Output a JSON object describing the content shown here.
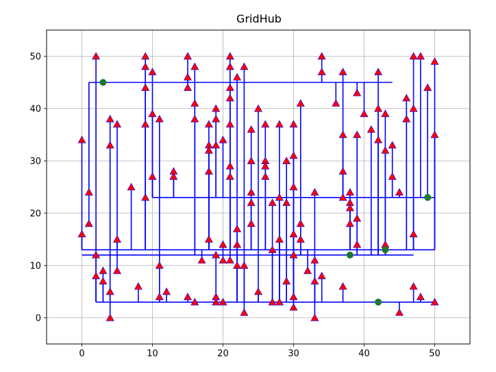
{
  "chart_data": {
    "type": "scatter",
    "title": "GridHub",
    "xlabel": "",
    "ylabel": "",
    "xlim": [
      -5,
      55
    ],
    "ylim": [
      -5,
      55
    ],
    "xticks": [
      0,
      10,
      20,
      30,
      40,
      50
    ],
    "yticks": [
      0,
      10,
      20,
      30,
      40,
      50
    ],
    "grid": true,
    "colors": {
      "wire": "#0000ff",
      "terminal_fill": "#ff0000",
      "terminal_edge": "#0000ff",
      "hub": "#1a7a2e",
      "grid": "#b0b0b0",
      "axes": "#000000"
    },
    "hubs": [
      {
        "x": 3,
        "y": 45
      },
      {
        "x": 38,
        "y": 12
      },
      {
        "x": 43,
        "y": 13
      },
      {
        "x": 49,
        "y": 23
      },
      {
        "x": 42,
        "y": 3
      }
    ],
    "trunks": [
      {
        "x1": 1,
        "x2": 44,
        "y": 45
      },
      {
        "x1": 0,
        "x2": 50,
        "y": 13
      },
      {
        "x1": 0,
        "x2": 47,
        "y": 12
      },
      {
        "x1": 10,
        "x2": 50,
        "y": 23
      },
      {
        "x1": 2,
        "x2": 50,
        "y": 3
      }
    ],
    "terminals": [
      {
        "x": 0,
        "y": 34,
        "hub": 1
      },
      {
        "x": 0,
        "y": 16,
        "hub": 1
      },
      {
        "x": 1,
        "y": 24,
        "hub": 0
      },
      {
        "x": 1,
        "y": 18,
        "hub": 0
      },
      {
        "x": 2,
        "y": 50,
        "hub": 4
      },
      {
        "x": 2,
        "y": 12,
        "hub": 4
      },
      {
        "x": 2,
        "y": 8,
        "hub": 4
      },
      {
        "x": 3,
        "y": 9,
        "hub": 4
      },
      {
        "x": 3,
        "y": 7,
        "hub": 4
      },
      {
        "x": 4,
        "y": 38,
        "hub": 4
      },
      {
        "x": 4,
        "y": 33,
        "hub": 4
      },
      {
        "x": 4,
        "y": 5,
        "hub": 4
      },
      {
        "x": 4,
        "y": 0,
        "hub": 4
      },
      {
        "x": 5,
        "y": 37,
        "hub": 1
      },
      {
        "x": 5,
        "y": 15,
        "hub": 1
      },
      {
        "x": 5,
        "y": 9,
        "hub": 1
      },
      {
        "x": 7,
        "y": 25,
        "hub": 1
      },
      {
        "x": 8,
        "y": 6,
        "hub": 4
      },
      {
        "x": 9,
        "y": 50,
        "hub": 1
      },
      {
        "x": 9,
        "y": 48,
        "hub": 1
      },
      {
        "x": 9,
        "y": 44,
        "hub": 1
      },
      {
        "x": 9,
        "y": 37,
        "hub": 1
      },
      {
        "x": 9,
        "y": 23,
        "hub": 1
      },
      {
        "x": 10,
        "y": 47,
        "hub": 3
      },
      {
        "x": 10,
        "y": 39,
        "hub": 3
      },
      {
        "x": 10,
        "y": 27,
        "hub": 3
      },
      {
        "x": 11,
        "y": 38,
        "hub": 4
      },
      {
        "x": 11,
        "y": 10,
        "hub": 4
      },
      {
        "x": 11,
        "y": 4,
        "hub": 4
      },
      {
        "x": 12,
        "y": 5,
        "hub": 4
      },
      {
        "x": 13,
        "y": 28,
        "hub": 3
      },
      {
        "x": 13,
        "y": 27,
        "hub": 3
      },
      {
        "x": 15,
        "y": 50,
        "hub": 0
      },
      {
        "x": 15,
        "y": 46,
        "hub": 0
      },
      {
        "x": 15,
        "y": 44,
        "hub": 0
      },
      {
        "x": 15,
        "y": 4,
        "hub": 4
      },
      {
        "x": 16,
        "y": 48,
        "hub": 2
      },
      {
        "x": 16,
        "y": 41,
        "hub": 2
      },
      {
        "x": 16,
        "y": 38,
        "hub": 2
      },
      {
        "x": 16,
        "y": 3,
        "hub": 4
      },
      {
        "x": 17,
        "y": 11,
        "hub": 1
      },
      {
        "x": 18,
        "y": 37,
        "hub": 1
      },
      {
        "x": 18,
        "y": 33,
        "hub": 1
      },
      {
        "x": 18,
        "y": 32,
        "hub": 1
      },
      {
        "x": 18,
        "y": 28,
        "hub": 1
      },
      {
        "x": 18,
        "y": 15,
        "hub": 1
      },
      {
        "x": 19,
        "y": 40,
        "hub": 3
      },
      {
        "x": 19,
        "y": 38,
        "hub": 3
      },
      {
        "x": 19,
        "y": 33,
        "hub": 3
      },
      {
        "x": 19,
        "y": 12,
        "hub": 4
      },
      {
        "x": 19,
        "y": 4,
        "hub": 4
      },
      {
        "x": 19,
        "y": 3,
        "hub": 4
      },
      {
        "x": 20,
        "y": 34,
        "hub": 3
      },
      {
        "x": 20,
        "y": 14,
        "hub": 2
      },
      {
        "x": 20,
        "y": 11,
        "hub": 2
      },
      {
        "x": 20,
        "y": 3,
        "hub": 4
      },
      {
        "x": 21,
        "y": 50,
        "hub": 1
      },
      {
        "x": 21,
        "y": 48,
        "hub": 1
      },
      {
        "x": 21,
        "y": 44,
        "hub": 1
      },
      {
        "x": 21,
        "y": 42,
        "hub": 1
      },
      {
        "x": 21,
        "y": 37,
        "hub": 1
      },
      {
        "x": 21,
        "y": 29,
        "hub": 1
      },
      {
        "x": 21,
        "y": 27,
        "hub": 1
      },
      {
        "x": 21,
        "y": 11,
        "hub": 1
      },
      {
        "x": 22,
        "y": 46,
        "hub": 4
      },
      {
        "x": 22,
        "y": 17,
        "hub": 4
      },
      {
        "x": 22,
        "y": 14,
        "hub": 4
      },
      {
        "x": 22,
        "y": 10,
        "hub": 4
      },
      {
        "x": 23,
        "y": 48,
        "hub": 4
      },
      {
        "x": 23,
        "y": 10,
        "hub": 4
      },
      {
        "x": 23,
        "y": 1,
        "hub": 4
      },
      {
        "x": 24,
        "y": 36,
        "hub": 1
      },
      {
        "x": 24,
        "y": 30,
        "hub": 1
      },
      {
        "x": 24,
        "y": 24,
        "hub": 1
      },
      {
        "x": 24,
        "y": 22,
        "hub": 1
      },
      {
        "x": 24,
        "y": 18,
        "hub": 1
      },
      {
        "x": 25,
        "y": 40,
        "hub": 4
      },
      {
        "x": 25,
        "y": 5,
        "hub": 4
      },
      {
        "x": 26,
        "y": 37,
        "hub": 1
      },
      {
        "x": 26,
        "y": 30,
        "hub": 1
      },
      {
        "x": 26,
        "y": 29,
        "hub": 1
      },
      {
        "x": 26,
        "y": 27,
        "hub": 1
      },
      {
        "x": 27,
        "y": 22,
        "hub": 4
      },
      {
        "x": 27,
        "y": 13,
        "hub": 4
      },
      {
        "x": 27,
        "y": 3,
        "hub": 4
      },
      {
        "x": 28,
        "y": 37,
        "hub": 4
      },
      {
        "x": 28,
        "y": 23,
        "hub": 4
      },
      {
        "x": 28,
        "y": 15,
        "hub": 4
      },
      {
        "x": 28,
        "y": 3,
        "hub": 4
      },
      {
        "x": 29,
        "y": 30,
        "hub": 4
      },
      {
        "x": 29,
        "y": 22,
        "hub": 4
      },
      {
        "x": 29,
        "y": 7,
        "hub": 4
      },
      {
        "x": 30,
        "y": 37,
        "hub": 4
      },
      {
        "x": 30,
        "y": 31,
        "hub": 4
      },
      {
        "x": 30,
        "y": 25,
        "hub": 4
      },
      {
        "x": 30,
        "y": 16,
        "hub": 4
      },
      {
        "x": 30,
        "y": 12,
        "hub": 4
      },
      {
        "x": 30,
        "y": 4,
        "hub": 4
      },
      {
        "x": 30,
        "y": 2,
        "hub": 4
      },
      {
        "x": 31,
        "y": 41,
        "hub": 2
      },
      {
        "x": 31,
        "y": 18,
        "hub": 2
      },
      {
        "x": 31,
        "y": 15,
        "hub": 2
      },
      {
        "x": 32,
        "y": 9,
        "hub": 1
      },
      {
        "x": 33,
        "y": 24,
        "hub": 4
      },
      {
        "x": 33,
        "y": 11,
        "hub": 4
      },
      {
        "x": 33,
        "y": 7,
        "hub": 4
      },
      {
        "x": 33,
        "y": 0,
        "hub": 4
      },
      {
        "x": 34,
        "y": 50,
        "hub": 0
      },
      {
        "x": 34,
        "y": 47,
        "hub": 0
      },
      {
        "x": 34,
        "y": 8,
        "hub": 4
      },
      {
        "x": 36,
        "y": 41,
        "hub": 0
      },
      {
        "x": 37,
        "y": 47,
        "hub": 3
      },
      {
        "x": 37,
        "y": 35,
        "hub": 3
      },
      {
        "x": 37,
        "y": 28,
        "hub": 3
      },
      {
        "x": 37,
        "y": 23,
        "hub": 3
      },
      {
        "x": 37,
        "y": 6,
        "hub": 4
      },
      {
        "x": 38,
        "y": 24,
        "hub": 1
      },
      {
        "x": 38,
        "y": 22,
        "hub": 1
      },
      {
        "x": 38,
        "y": 21,
        "hub": 1
      },
      {
        "x": 38,
        "y": 18,
        "hub": 1
      },
      {
        "x": 39,
        "y": 43,
        "hub": 0
      },
      {
        "x": 39,
        "y": 35,
        "hub": 2
      },
      {
        "x": 39,
        "y": 19,
        "hub": 2
      },
      {
        "x": 39,
        "y": 14,
        "hub": 2
      },
      {
        "x": 40,
        "y": 39,
        "hub": 0
      },
      {
        "x": 41,
        "y": 36,
        "hub": 2
      },
      {
        "x": 42,
        "y": 47,
        "hub": 2
      },
      {
        "x": 42,
        "y": 40,
        "hub": 2
      },
      {
        "x": 42,
        "y": 34,
        "hub": 2
      },
      {
        "x": 43,
        "y": 39,
        "hub": 2
      },
      {
        "x": 43,
        "y": 32,
        "hub": 2
      },
      {
        "x": 43,
        "y": 14,
        "hub": 2
      },
      {
        "x": 44,
        "y": 33,
        "hub": 3
      },
      {
        "x": 44,
        "y": 27,
        "hub": 3
      },
      {
        "x": 45,
        "y": 24,
        "hub": 3
      },
      {
        "x": 45,
        "y": 1,
        "hub": 4
      },
      {
        "x": 46,
        "y": 42,
        "hub": 1
      },
      {
        "x": 46,
        "y": 38,
        "hub": 1
      },
      {
        "x": 47,
        "y": 50,
        "hub": 1
      },
      {
        "x": 47,
        "y": 40,
        "hub": 1
      },
      {
        "x": 47,
        "y": 16,
        "hub": 1
      },
      {
        "x": 47,
        "y": 6,
        "hub": 4
      },
      {
        "x": 48,
        "y": 50,
        "hub": 3
      },
      {
        "x": 48,
        "y": 4,
        "hub": 4
      },
      {
        "x": 49,
        "y": 44,
        "hub": 3
      },
      {
        "x": 50,
        "y": 49,
        "hub": 1
      },
      {
        "x": 50,
        "y": 35,
        "hub": 1
      },
      {
        "x": 50,
        "y": 3,
        "hub": 4
      }
    ]
  }
}
